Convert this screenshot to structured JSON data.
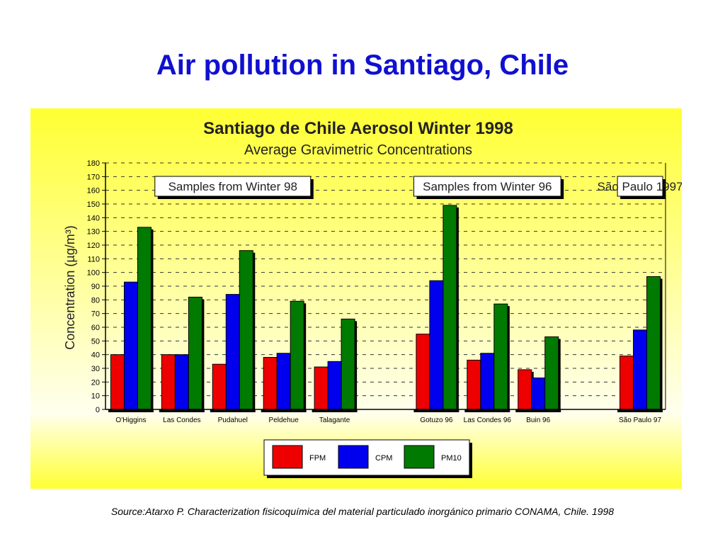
{
  "slide": {
    "title": "Air pollution in Santiago, Chile",
    "source": "Source:Atarxo P. Characterization fisicoquímica del material particulado inorgánico primario CONAMA, Chile. 1998"
  },
  "colors": {
    "fpm": "#ee0000",
    "cpm": "#0000ee",
    "pm10": "#007a00",
    "title": "#1010d0",
    "bg_top": "#ffff33",
    "bg_mid": "#ffffee"
  },
  "chart_data": {
    "type": "bar",
    "title": "Santiago de Chile Aerosol Winter 1998",
    "subtitle": "Average Gravimetric Concentrations",
    "xlabel": "",
    "ylabel": "Concentration (µg/m³)",
    "ylim": [
      0,
      180
    ],
    "ytick_step": 10,
    "grid": true,
    "legend": "bottom-center",
    "categories": [
      "O'Higgins",
      "Las Condes",
      "Pudahuel",
      "Peldehue",
      "Talagante",
      "",
      "Gotuzo 96",
      "Las Condes 96",
      "Buin 96",
      "",
      "São Paulo 97"
    ],
    "series": [
      {
        "name": "FPM",
        "values": [
          40,
          40,
          33,
          38,
          31,
          null,
          55,
          36,
          29,
          null,
          39
        ]
      },
      {
        "name": "CPM",
        "values": [
          93,
          40,
          84,
          41,
          35,
          null,
          94,
          41,
          23,
          null,
          58
        ]
      },
      {
        "name": "PM10",
        "values": [
          133,
          82,
          116,
          79,
          66,
          null,
          149,
          77,
          53,
          null,
          97
        ]
      }
    ],
    "annotations": [
      {
        "text": "Samples from Winter 98",
        "from": 0,
        "to": 4
      },
      {
        "text": "Samples from Winter 96",
        "from": 6,
        "to": 8
      },
      {
        "text": "São Paulo 1997",
        "from": 10,
        "to": 10
      }
    ]
  }
}
